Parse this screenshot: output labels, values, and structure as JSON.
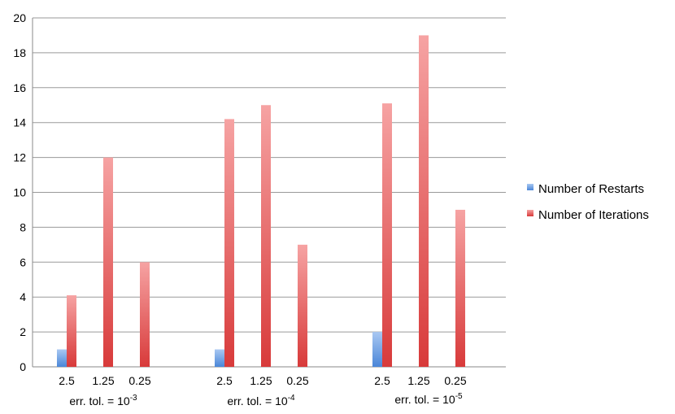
{
  "chart_data": {
    "type": "bar",
    "title": "",
    "xlabel": "",
    "ylabel": "",
    "ylim": [
      0,
      20
    ],
    "yticks": [
      0,
      2,
      4,
      6,
      8,
      10,
      12,
      14,
      16,
      18,
      20
    ],
    "grid": true,
    "legend_position": "right",
    "groups": [
      {
        "label": "err. tol. = 10",
        "exponent": "-3",
        "categories": [
          "2.5",
          "1.25",
          "0.25"
        ]
      },
      {
        "label": "err. tol. = 10",
        "exponent": "-4",
        "categories": [
          "2.5",
          "1.25",
          "0.25"
        ]
      },
      {
        "label": "err. tol. = 10",
        "exponent": "-5",
        "categories": [
          "2.5",
          "1.25",
          "0.25"
        ]
      }
    ],
    "series": [
      {
        "name": "Number of Restarts",
        "color": "#4a86d8",
        "values": [
          1,
          0,
          0,
          1,
          0,
          0,
          2,
          0,
          0
        ]
      },
      {
        "name": "Number of Iterations",
        "color": "#d83a3a",
        "values": [
          4.1,
          12,
          6,
          14.2,
          15,
          7,
          15.1,
          19,
          9
        ]
      }
    ]
  }
}
